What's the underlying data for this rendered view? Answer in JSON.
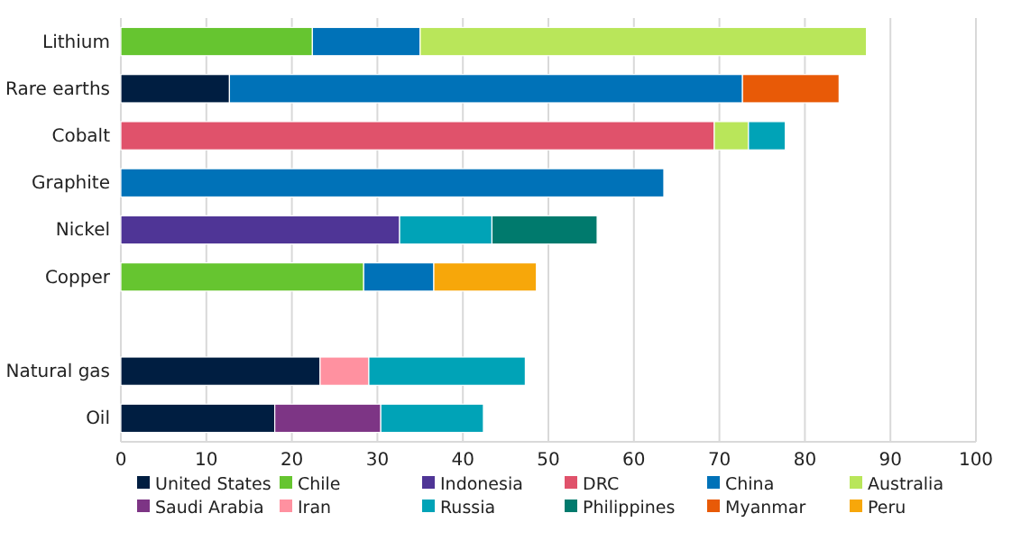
{
  "chart_data": {
    "type": "bar",
    "orientation": "horizontal",
    "stacked": true,
    "categories": [
      "Lithium",
      "Rare earths",
      "Cobalt",
      "Graphite",
      "Nickel",
      "Copper",
      null,
      "Natural gas",
      "Oil"
    ],
    "series": [
      {
        "name": "United States",
        "color": "#001e41",
        "values": [
          null,
          12.7,
          null,
          null,
          null,
          null,
          null,
          23.3,
          18.0
        ]
      },
      {
        "name": "Chile",
        "color": "#66c530",
        "values": [
          22.4,
          null,
          null,
          null,
          null,
          28.4,
          null,
          null,
          null
        ]
      },
      {
        "name": "Indonesia",
        "color": "#4f3596",
        "values": [
          null,
          null,
          null,
          null,
          32.6,
          null,
          null,
          null,
          null
        ]
      },
      {
        "name": "DRC",
        "color": "#e0526b",
        "values": [
          null,
          null,
          69.4,
          null,
          null,
          null,
          null,
          null,
          null
        ]
      },
      {
        "name": "China",
        "color": "#0072b8",
        "values": [
          12.6,
          60.0,
          null,
          63.5,
          null,
          8.2,
          null,
          null,
          null
        ]
      },
      {
        "name": "Australia",
        "color": "#b9e65a",
        "values": [
          52.2,
          null,
          4.0,
          null,
          null,
          null,
          null,
          null,
          null
        ]
      },
      {
        "name": "Saudi Arabia",
        "color": "#7d3585",
        "values": [
          null,
          null,
          null,
          null,
          null,
          null,
          null,
          null,
          12.4
        ]
      },
      {
        "name": "Iran",
        "color": "#ff91a0",
        "values": [
          null,
          null,
          null,
          null,
          null,
          null,
          null,
          5.7,
          null
        ]
      },
      {
        "name": "Russia",
        "color": "#00a3b7",
        "values": [
          null,
          null,
          4.3,
          null,
          10.8,
          null,
          null,
          18.3,
          12.0
        ]
      },
      {
        "name": "Philippines",
        "color": "#007a6d",
        "values": [
          null,
          null,
          null,
          null,
          12.3,
          null,
          null,
          null,
          null
        ]
      },
      {
        "name": "Myanmar",
        "color": "#e85a07",
        "values": [
          null,
          11.3,
          null,
          null,
          null,
          null,
          null,
          null,
          null
        ]
      },
      {
        "name": "Peru",
        "color": "#f7a70a",
        "values": [
          null,
          null,
          null,
          null,
          null,
          12.0,
          null,
          null,
          null
        ]
      }
    ],
    "xlim": [
      0,
      100
    ],
    "xticks": [
      0,
      10,
      20,
      30,
      40,
      50,
      60,
      70,
      80,
      90,
      100
    ],
    "grid": "x",
    "legend": "bottom"
  }
}
